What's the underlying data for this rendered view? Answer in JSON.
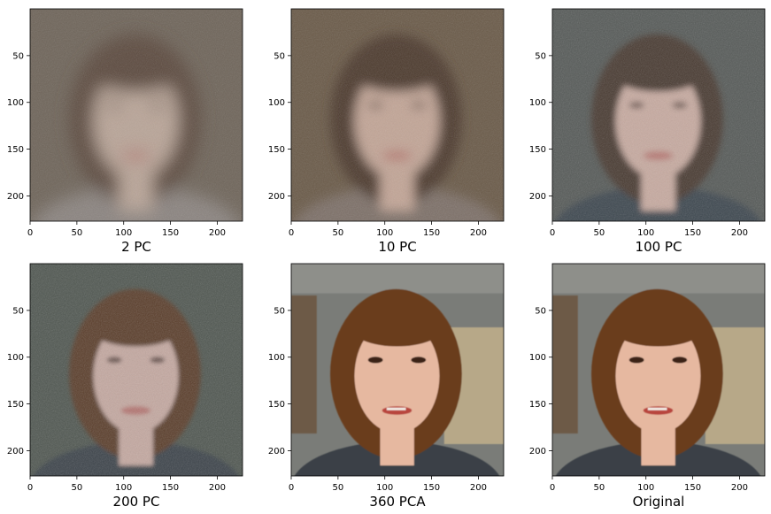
{
  "chart_data": [
    {
      "type": "image",
      "xlabel": "2 PC",
      "x_ticks": [
        0,
        50,
        100,
        150,
        200
      ],
      "y_ticks": [
        50,
        100,
        150,
        200
      ],
      "xlim": [
        0,
        227
      ],
      "ylim": [
        227,
        0
      ],
      "fidelity": 0.08,
      "colors": {
        "bg": "#6f655a",
        "face": "#b9a598",
        "hair": "#5d4b40",
        "sweater": "#8b8480"
      }
    },
    {
      "type": "image",
      "xlabel": "10 PC",
      "x_ticks": [
        0,
        50,
        100,
        150,
        200
      ],
      "y_ticks": [
        50,
        100,
        150,
        200
      ],
      "xlim": [
        0,
        227
      ],
      "ylim": [
        227,
        0
      ],
      "fidelity": 0.18,
      "colors": {
        "bg": "#6a5a48",
        "face": "#c2a596",
        "hair": "#4d3a2e",
        "sweater": "#7d7068"
      }
    },
    {
      "type": "image",
      "xlabel": "100 PC",
      "x_ticks": [
        0,
        50,
        100,
        150,
        200
      ],
      "y_ticks": [
        50,
        100,
        150,
        200
      ],
      "xlim": [
        0,
        227
      ],
      "ylim": [
        227,
        0
      ],
      "fidelity": 0.35,
      "colors": {
        "bg": "#565a58",
        "face": "#c7aaa0",
        "hair": "#4a3a30",
        "sweater": "#3e4650"
      }
    },
    {
      "type": "image",
      "xlabel": "200 PC",
      "x_ticks": [
        0,
        50,
        100,
        150,
        200
      ],
      "y_ticks": [
        50,
        100,
        150,
        200
      ],
      "xlim": [
        0,
        227
      ],
      "ylim": [
        227,
        0
      ],
      "fidelity": 0.5,
      "colors": {
        "bg": "#4f5650",
        "face": "#c4a8a0",
        "hair": "#5a3e2c",
        "sweater": "#3b4248"
      }
    },
    {
      "type": "image",
      "xlabel": "360 PCA",
      "x_ticks": [
        0,
        50,
        100,
        150,
        200
      ],
      "y_ticks": [
        50,
        100,
        150,
        200
      ],
      "xlim": [
        0,
        227
      ],
      "ylim": [
        227,
        0
      ],
      "fidelity": 1.0,
      "colors": {
        "bg": "#7a7c78",
        "face": "#e6b8a0",
        "hair": "#6b3e1e",
        "sweater": "#3a4046"
      }
    },
    {
      "type": "image",
      "xlabel": "Original",
      "x_ticks": [
        0,
        50,
        100,
        150,
        200
      ],
      "y_ticks": [
        50,
        100,
        150,
        200
      ],
      "xlim": [
        0,
        227
      ],
      "ylim": [
        227,
        0
      ],
      "fidelity": 1.0,
      "colors": {
        "bg": "#7a7c78",
        "face": "#e6b8a0",
        "hair": "#6b3e1e",
        "sweater": "#3a4046"
      }
    }
  ]
}
